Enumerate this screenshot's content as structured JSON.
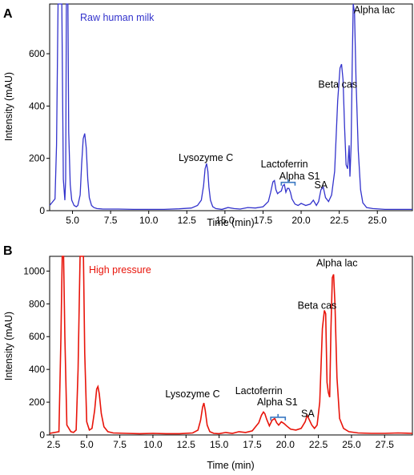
{
  "chart_data": [
    {
      "type": "line",
      "panel": "A",
      "color": "#3333cc",
      "title": "Raw human milk",
      "xlabel": "Time (min)",
      "ylabel": "Intensity (mAU)",
      "xlim": [
        3.5,
        27.3
      ],
      "ylim": [
        0,
        790
      ],
      "xticks": [
        "5.0",
        "7.5",
        "10.0",
        "12.5",
        "15.0",
        "17.5",
        "20.0",
        "22.5",
        "25.0"
      ],
      "xtick_values": [
        5.0,
        7.5,
        10.0,
        12.5,
        15.0,
        17.5,
        20.0,
        22.5,
        25.0
      ],
      "yticks": [
        "0",
        "200",
        "400",
        "600"
      ],
      "ytick_values": [
        0,
        200,
        400,
        600
      ],
      "series": [
        {
          "x": [
            3.5,
            3.85,
            3.95,
            4.05,
            4.2,
            4.3,
            4.4,
            4.5,
            4.55,
            4.6,
            4.65,
            4.7,
            4.75,
            4.85,
            4.95,
            5.1,
            5.25,
            5.35,
            5.5,
            5.6,
            5.7,
            5.8,
            5.9,
            6.0,
            6.1,
            6.25,
            6.4,
            6.6,
            7.0,
            8.0,
            9.0,
            10.0,
            11.0,
            12.0,
            12.8,
            13.2,
            13.45,
            13.6,
            13.7,
            13.8,
            13.88,
            13.95,
            14.05,
            14.2,
            14.4,
            14.8,
            15.2,
            15.6,
            16.0,
            16.5,
            17.0,
            17.5,
            17.85,
            18.0,
            18.15,
            18.25,
            18.35,
            18.45,
            18.55,
            18.7,
            18.8,
            18.9,
            19.0,
            19.1,
            19.2,
            19.3,
            19.4,
            19.6,
            19.8,
            20.0,
            20.3,
            20.6,
            20.8,
            21.0,
            21.15,
            21.3,
            21.45,
            21.6,
            21.8,
            22.0,
            22.2,
            22.4,
            22.55,
            22.65,
            22.75,
            22.85,
            22.95,
            23.05,
            23.15,
            23.2,
            23.28,
            23.35,
            23.42,
            23.5,
            23.6,
            23.75,
            23.9,
            24.05,
            24.3,
            24.7,
            25.5,
            26.5,
            27.3
          ],
          "y": [
            20,
            45,
            250,
            790,
            790,
            790,
            120,
            40,
            120,
            790,
            790,
            790,
            300,
            100,
            40,
            20,
            15,
            20,
            60,
            180,
            275,
            295,
            240,
            120,
            50,
            20,
            12,
            8,
            6,
            6,
            5,
            5,
            5,
            7,
            10,
            20,
            40,
            95,
            160,
            180,
            150,
            90,
            40,
            15,
            8,
            5,
            12,
            8,
            6,
            12,
            10,
            15,
            35,
            70,
            110,
            115,
            80,
            65,
            70,
            75,
            95,
            100,
            70,
            85,
            85,
            70,
            45,
            25,
            20,
            28,
            20,
            25,
            40,
            20,
            35,
            80,
            90,
            50,
            35,
            60,
            150,
            420,
            545,
            560,
            500,
            320,
            175,
            160,
            250,
            130,
            250,
            550,
            790,
            760,
            500,
            230,
            80,
            30,
            12,
            8,
            5,
            5,
            5
          ]
        }
      ],
      "annotations": [
        {
          "text": "Lysozyme C",
          "x": 13.75,
          "y": 190
        },
        {
          "text": "Lactoferrin",
          "x": 18.9,
          "y": 165
        },
        {
          "text": "Alpha S1",
          "x": 19.9,
          "y": 120
        },
        {
          "text": "SA",
          "x": 21.3,
          "y": 85
        },
        {
          "text": "Beta cas",
          "x": 22.4,
          "y": 470
        },
        {
          "text": "Alpha lac",
          "x": 24.8,
          "y": 755
        }
      ],
      "bracket": {
        "x_start": 18.7,
        "x_end": 19.6,
        "y": 108
      }
    },
    {
      "type": "line",
      "panel": "B",
      "color": "#e8140a",
      "title": "High pressure",
      "xlabel": "Time (min)",
      "ylabel": "Intensity (mAU)",
      "xlim": [
        2.2,
        29.6
      ],
      "ylim": [
        0,
        1090
      ],
      "xticks": [
        "2.5",
        "5.0",
        "7.5",
        "10.0",
        "12.5",
        "15.0",
        "17.5",
        "20.0",
        "22.5",
        "25.0",
        "27.5"
      ],
      "xtick_values": [
        2.5,
        5.0,
        7.5,
        10.0,
        12.5,
        15.0,
        17.5,
        20.0,
        22.5,
        25.0,
        27.5
      ],
      "yticks": [
        "0",
        "200",
        "400",
        "600",
        "800",
        "1000"
      ],
      "ytick_values": [
        0,
        200,
        400,
        600,
        800,
        1000
      ],
      "series": [
        {
          "x": [
            2.2,
            2.9,
            3.05,
            3.15,
            3.25,
            3.35,
            3.5,
            3.8,
            4.0,
            4.2,
            4.35,
            4.5,
            4.6,
            4.75,
            4.85,
            5.0,
            5.2,
            5.4,
            5.6,
            5.75,
            5.85,
            5.95,
            6.1,
            6.3,
            6.6,
            7.0,
            8.0,
            9.0,
            10.0,
            11.0,
            12.0,
            13.0,
            13.4,
            13.6,
            13.75,
            13.85,
            13.95,
            14.1,
            14.3,
            14.6,
            15.0,
            15.5,
            16.0,
            16.5,
            17.0,
            17.5,
            18.0,
            18.2,
            18.35,
            18.45,
            18.6,
            18.8,
            19.0,
            19.2,
            19.35,
            19.5,
            19.7,
            19.9,
            20.1,
            20.4,
            20.8,
            21.2,
            21.5,
            21.65,
            21.8,
            22.0,
            22.2,
            22.4,
            22.6,
            22.8,
            22.95,
            23.05,
            23.15,
            23.25,
            23.35,
            23.45,
            23.55,
            23.65,
            23.75,
            23.9,
            24.1,
            24.4,
            24.8,
            25.5,
            26.5,
            27.5,
            28.5,
            29.6
          ],
          "y": [
            10,
            20,
            600,
            1090,
            1090,
            600,
            60,
            20,
            15,
            30,
            400,
            1090,
            1090,
            1090,
            500,
            80,
            30,
            40,
            150,
            280,
            295,
            250,
            130,
            50,
            20,
            12,
            10,
            8,
            10,
            8,
            8,
            12,
            30,
            90,
            170,
            195,
            150,
            60,
            20,
            10,
            8,
            15,
            10,
            20,
            15,
            25,
            75,
            120,
            140,
            130,
            95,
            55,
            90,
            100,
            75,
            60,
            80,
            70,
            55,
            35,
            30,
            40,
            80,
            120,
            95,
            60,
            40,
            60,
            200,
            650,
            760,
            740,
            320,
            260,
            230,
            650,
            960,
            980,
            800,
            350,
            100,
            40,
            20,
            12,
            10,
            10,
            12,
            10
          ]
        }
      ],
      "annotations": [
        {
          "text": "Lysozyme C",
          "x": 13.0,
          "y": 230
        },
        {
          "text": "Lactoferrin",
          "x": 18.0,
          "y": 250
        },
        {
          "text": "Alpha S1",
          "x": 19.4,
          "y": 180
        },
        {
          "text": "SA",
          "x": 21.7,
          "y": 110
        },
        {
          "text": "Beta cas",
          "x": 22.4,
          "y": 770
        },
        {
          "text": "Alpha lac",
          "x": 23.9,
          "y": 1030
        }
      ],
      "bracket": {
        "x_start": 18.9,
        "x_end": 20.0,
        "y": 108
      }
    }
  ]
}
